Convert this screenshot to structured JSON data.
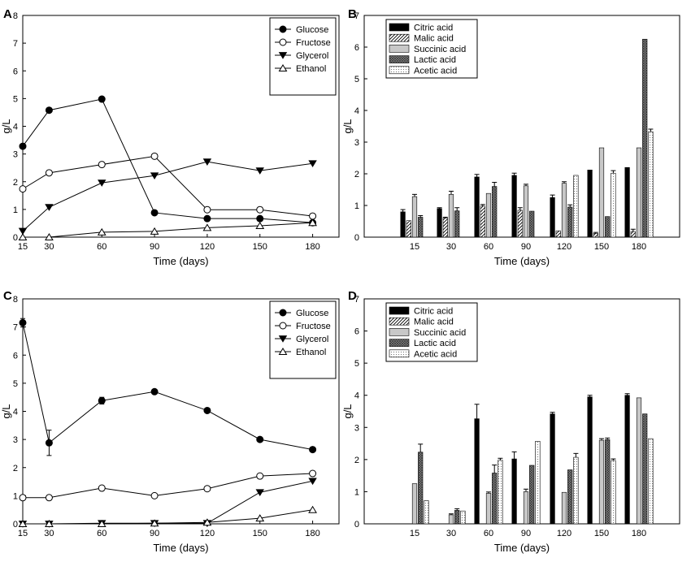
{
  "colors": {
    "axis": "#000000",
    "background": "#ffffff",
    "bar_citric": "#000000",
    "bar_succinic": "#c8c8c8",
    "bar_lactic": "#8c8c8c"
  },
  "chart_data": [
    {
      "id": "A",
      "panel_label": "A",
      "type": "line",
      "title": "",
      "xlabel": "Time (days)",
      "ylabel": "g/L",
      "xlim": [
        15,
        195
      ],
      "ylim": [
        0,
        8
      ],
      "x_ticks": [
        15,
        30,
        60,
        90,
        120,
        150,
        180
      ],
      "y_ticks": [
        0,
        1,
        2,
        3,
        4,
        5,
        6,
        7,
        8
      ],
      "legend_position": "top-right",
      "series": [
        {
          "name": "Glucose",
          "marker": "circle-filled",
          "x": [
            15,
            30,
            60,
            90,
            120,
            150,
            180
          ],
          "values": [
            3.28,
            4.58,
            4.98,
            0.88,
            0.67,
            0.67,
            0.52
          ],
          "errors": [
            0,
            0.08,
            0,
            0.07,
            0,
            0,
            0
          ]
        },
        {
          "name": "Fructose",
          "marker": "circle-open",
          "x": [
            15,
            30,
            60,
            90,
            120,
            150,
            180
          ],
          "values": [
            1.74,
            2.32,
            2.62,
            2.92,
            0.99,
            0.99,
            0.76
          ],
          "errors": [
            0.05,
            0,
            0,
            0,
            0,
            0,
            0.05
          ]
        },
        {
          "name": "Glycerol",
          "marker": "triangle-down-filled",
          "x": [
            15,
            30,
            60,
            90,
            120,
            150,
            180
          ],
          "values": [
            0.22,
            1.08,
            1.96,
            2.22,
            2.72,
            2.4,
            2.66
          ],
          "errors": [
            0,
            0,
            0,
            0,
            0,
            0,
            0
          ]
        },
        {
          "name": "Ethanol",
          "marker": "triangle-up-open",
          "x": [
            15,
            30,
            60,
            90,
            120,
            150,
            180
          ],
          "values": [
            0.0,
            0.0,
            0.18,
            0.21,
            0.34,
            0.41,
            0.52
          ],
          "errors": [
            0,
            0,
            0,
            0,
            0,
            0,
            0
          ]
        }
      ]
    },
    {
      "id": "B",
      "panel_label": "B",
      "type": "bar",
      "title": "",
      "xlabel": "Time (days)",
      "ylabel": "g/L",
      "ylim": [
        0,
        7
      ],
      "y_ticks": [
        0,
        1,
        2,
        3,
        4,
        5,
        6,
        7
      ],
      "legend_position": "top-left",
      "categories": [
        "15",
        "30",
        "60",
        "90",
        "120",
        "150",
        "180"
      ],
      "series": [
        {
          "name": "Citric acid",
          "pattern": "solid-black",
          "values": [
            0.8,
            0.9,
            1.9,
            1.95,
            1.25,
            2.12,
            2.2
          ],
          "errors": [
            0.07,
            0.03,
            0.08,
            0.07,
            0.08,
            0,
            0
          ]
        },
        {
          "name": "Malic acid",
          "pattern": "hatch",
          "values": [
            0.52,
            0.6,
            0.98,
            0.85,
            0.2,
            0.12,
            0.18
          ],
          "errors": [
            0,
            0.03,
            0.05,
            0.08,
            0,
            0.03,
            0.07
          ]
        },
        {
          "name": "Succinic acid",
          "pattern": "light-gray",
          "values": [
            1.28,
            1.35,
            1.38,
            1.62,
            1.7,
            2.82,
            2.82
          ],
          "errors": [
            0.07,
            0.1,
            0,
            0.05,
            0.05,
            0,
            0
          ]
        },
        {
          "name": "Lactic acid",
          "pattern": "crosshatch-dark",
          "values": [
            0.63,
            0.83,
            1.6,
            0.82,
            0.95,
            0.65,
            6.25
          ],
          "errors": [
            0.05,
            0.1,
            0.13,
            0,
            0.07,
            0,
            0
          ]
        },
        {
          "name": "Acetic acid",
          "pattern": "dotted",
          "values": [
            0,
            0,
            0,
            0,
            1.95,
            2.02,
            3.33
          ],
          "errors": [
            0,
            0,
            0,
            0,
            0,
            0.08,
            0.08
          ]
        }
      ]
    },
    {
      "id": "C",
      "panel_label": "C",
      "type": "line",
      "title": "",
      "xlabel": "Time (days)",
      "ylabel": "g/L",
      "xlim": [
        15,
        195
      ],
      "ylim": [
        0,
        8
      ],
      "x_ticks": [
        15,
        30,
        60,
        90,
        120,
        150,
        180
      ],
      "y_ticks": [
        0,
        1,
        2,
        3,
        4,
        5,
        6,
        7,
        8
      ],
      "legend_position": "top-right",
      "series": [
        {
          "name": "Glucose",
          "marker": "circle-filled",
          "x": [
            15,
            30,
            60,
            90,
            120,
            150,
            180
          ],
          "values": [
            7.15,
            2.88,
            4.38,
            4.7,
            4.03,
            3.0,
            2.64
          ],
          "errors": [
            0.15,
            0.45,
            0.12,
            0,
            0,
            0,
            0
          ]
        },
        {
          "name": "Fructose",
          "marker": "circle-open",
          "x": [
            15,
            30,
            60,
            90,
            120,
            150,
            180
          ],
          "values": [
            0.93,
            0.93,
            1.27,
            1.0,
            1.25,
            1.7,
            1.79
          ],
          "errors": [
            0,
            0,
            0,
            0,
            0,
            0.05,
            0.08
          ]
        },
        {
          "name": "Glycerol",
          "marker": "triangle-down-filled",
          "x": [
            15,
            30,
            60,
            90,
            120,
            150,
            180
          ],
          "values": [
            0.0,
            0.0,
            0.02,
            0.02,
            0.02,
            1.12,
            1.52
          ],
          "errors": [
            0,
            0,
            0,
            0,
            0,
            0,
            0
          ]
        },
        {
          "name": "Ethanol",
          "marker": "triangle-up-open",
          "x": [
            15,
            30,
            60,
            90,
            120,
            150,
            180
          ],
          "values": [
            0.0,
            0.0,
            0.0,
            0.02,
            0.05,
            0.2,
            0.5
          ],
          "errors": [
            0,
            0,
            0,
            0,
            0,
            0,
            0
          ]
        }
      ]
    },
    {
      "id": "D",
      "panel_label": "D",
      "type": "bar",
      "title": "",
      "xlabel": "Time (days)",
      "ylabel": "g/L",
      "ylim": [
        0,
        7
      ],
      "y_ticks": [
        0,
        1,
        2,
        3,
        4,
        5,
        6,
        7
      ],
      "legend_position": "top-left",
      "categories": [
        "15",
        "30",
        "60",
        "90",
        "120",
        "150",
        "180"
      ],
      "series": [
        {
          "name": "Citric acid",
          "pattern": "solid-black",
          "values": [
            0,
            0,
            3.27,
            2.02,
            3.42,
            3.95,
            4.0
          ],
          "errors": [
            0,
            0,
            0.45,
            0.22,
            0.05,
            0.05,
            0.05
          ]
        },
        {
          "name": "Malic acid",
          "pattern": "hatch",
          "values": [
            0,
            0,
            0,
            0,
            0,
            0,
            0
          ],
          "errors": [
            0,
            0,
            0,
            0,
            0,
            0,
            0
          ]
        },
        {
          "name": "Succinic acid",
          "pattern": "light-gray",
          "values": [
            1.25,
            0.28,
            0.95,
            1.0,
            0.98,
            2.6,
            3.92
          ],
          "errors": [
            0,
            0.03,
            0.04,
            0.08,
            0,
            0.05,
            0
          ]
        },
        {
          "name": "Lactic acid",
          "pattern": "crosshatch-dark",
          "values": [
            2.23,
            0.42,
            1.58,
            1.82,
            1.68,
            2.62,
            3.42
          ],
          "errors": [
            0.25,
            0.05,
            0.25,
            0,
            0,
            0.05,
            0
          ]
        },
        {
          "name": "Acetic acid",
          "pattern": "dotted",
          "values": [
            0.72,
            0.4,
            1.98,
            2.57,
            2.07,
            1.97,
            2.65
          ],
          "errors": [
            0,
            0,
            0.06,
            0,
            0.12,
            0.05,
            0
          ]
        }
      ]
    }
  ]
}
